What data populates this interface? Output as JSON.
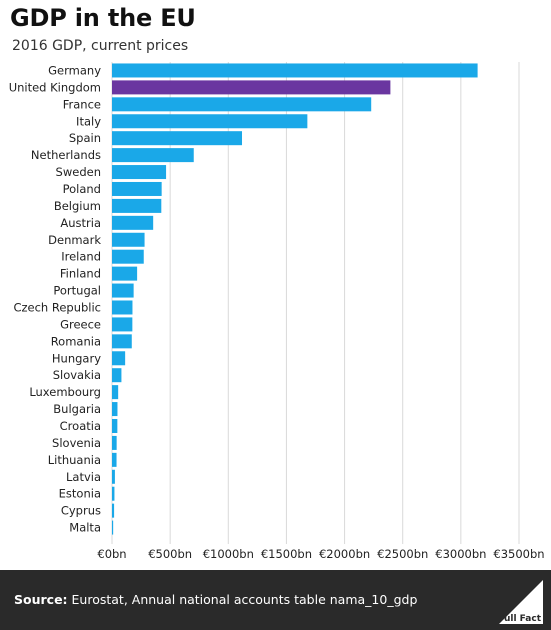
{
  "title": "GDP in the EU",
  "subtitle": "2016 GDP, current prices",
  "source_label": "Source:",
  "source_text": " Eurostat, Annual national accounts table nama_10_gdp",
  "logo_text": "Full Fact",
  "colors": {
    "bar": "#1aa8e8",
    "highlight": "#6a36a0",
    "footer": "#2a2a2a",
    "grid": "#d9d9d9"
  },
  "chart_data": {
    "type": "bar",
    "orientation": "horizontal",
    "title": "GDP in the EU",
    "subtitle": "2016 GDP, current prices",
    "xlim": [
      0,
      3500
    ],
    "xticks": [
      0,
      500,
      1000,
      1500,
      2000,
      2500,
      3000,
      3500
    ],
    "xtick_labels": [
      "€0bn",
      "€500bn",
      "€1000bn",
      "€1500bn",
      "€2000bn",
      "€2500bn",
      "€3000bn",
      "€3500bn"
    ],
    "grid": true,
    "highlight": "United Kingdom",
    "categories": [
      "Germany",
      "United Kingdom",
      "France",
      "Italy",
      "Spain",
      "Netherlands",
      "Sweden",
      "Poland",
      "Belgium",
      "Austria",
      "Denmark",
      "Ireland",
      "Finland",
      "Portugal",
      "Czech Republic",
      "Greece",
      "Romania",
      "Hungary",
      "Slovakia",
      "Luxembourg",
      "Bulgaria",
      "Croatia",
      "Slovenia",
      "Lithuania",
      "Latvia",
      "Estonia",
      "Cyprus",
      "Malta"
    ],
    "values": [
      3144,
      2394,
      2229,
      1680,
      1118,
      703,
      465,
      427,
      424,
      354,
      280,
      273,
      216,
      186,
      176,
      175,
      170,
      113,
      81,
      53,
      47,
      46,
      40,
      39,
      25,
      21,
      18,
      10
    ]
  }
}
